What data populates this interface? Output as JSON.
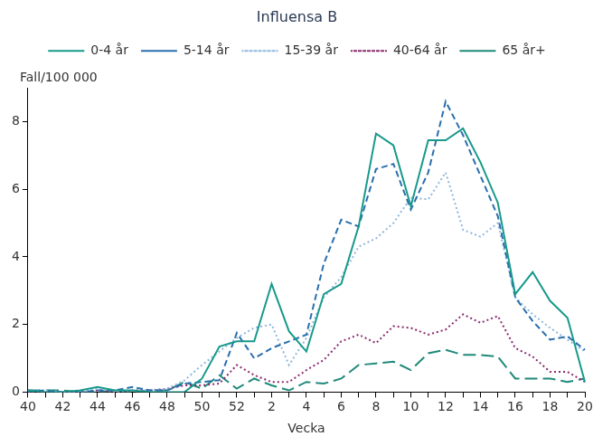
{
  "chart_data": {
    "type": "line",
    "title": "Influensa B",
    "y_label": "Fall/100 000",
    "x_label": "Vecka",
    "categories": [
      40,
      null,
      42,
      null,
      44,
      null,
      46,
      null,
      48,
      null,
      50,
      null,
      52,
      null,
      2,
      null,
      4,
      null,
      6,
      null,
      8,
      null,
      10,
      null,
      12,
      null,
      14,
      null,
      16,
      null,
      18,
      null,
      20
    ],
    "series": [
      {
        "name": "0-4 år",
        "color": "#17998a",
        "line_style": "solid",
        "values": [
          0.05,
          0,
          0,
          0.05,
          0.15,
          0.05,
          0.05,
          0,
          0,
          0,
          0.4,
          1.35,
          1.5,
          1.5,
          3.2,
          1.8,
          1.2,
          2.9,
          3.2,
          4.9,
          7.65,
          7.3,
          5.5,
          7.45,
          7.45,
          7.8,
          6.8,
          5.6,
          2.9,
          3.55,
          2.7,
          2.2,
          0.3
        ]
      },
      {
        "name": "5-14 år",
        "color": "#2a6ead",
        "line_style": "dashed",
        "values": [
          0,
          0.05,
          0,
          0,
          0.05,
          0.05,
          0.15,
          0.05,
          0.05,
          0.25,
          0.3,
          0.35,
          1.75,
          1.0,
          1.3,
          1.5,
          1.7,
          3.8,
          5.1,
          4.9,
          6.6,
          6.75,
          5.4,
          6.5,
          8.6,
          7.6,
          6.4,
          5.2,
          2.8,
          2.1,
          1.55,
          1.65,
          1.25
        ]
      },
      {
        "name": "15-39 år",
        "color": "#8fb8de",
        "line_style": "dotted",
        "values": [
          0.05,
          0.05,
          0,
          0,
          0.1,
          0,
          0.05,
          0.05,
          0.1,
          0.35,
          0.8,
          1.2,
          1.6,
          1.9,
          2.0,
          0.8,
          1.6,
          2.8,
          3.4,
          4.3,
          4.55,
          5.0,
          5.75,
          5.7,
          6.5,
          4.8,
          4.6,
          5.0,
          2.8,
          2.3,
          1.9,
          1.55,
          1.2
        ]
      },
      {
        "name": "40-64 år",
        "color": "#8b2a6e",
        "line_style": "dotted",
        "values": [
          0,
          0,
          0,
          0,
          0.05,
          0,
          0.05,
          0.05,
          0.1,
          0.2,
          0.2,
          0.25,
          0.8,
          0.5,
          0.3,
          0.3,
          0.65,
          0.95,
          1.5,
          1.7,
          1.45,
          1.95,
          1.9,
          1.7,
          1.85,
          2.3,
          2.05,
          2.25,
          1.3,
          1.05,
          0.6,
          0.6,
          0.3
        ]
      },
      {
        "name": "65 år+",
        "color": "#1f8a7a",
        "line_style": "longdash",
        "values": [
          0.05,
          0.05,
          0.05,
          0,
          0,
          0.05,
          0,
          0.05,
          0.05,
          0.3,
          0.1,
          0.5,
          0.1,
          0.4,
          0.2,
          0.05,
          0.3,
          0.25,
          0.4,
          0.8,
          0.85,
          0.9,
          0.65,
          1.15,
          1.25,
          1.1,
          1.1,
          1.05,
          0.4,
          0.4,
          0.4,
          0.3,
          0.4
        ]
      }
    ],
    "ylim": [
      0,
      9
    ],
    "yticks": [
      0,
      2,
      4,
      6,
      8
    ],
    "grid": false,
    "legend": "top"
  }
}
